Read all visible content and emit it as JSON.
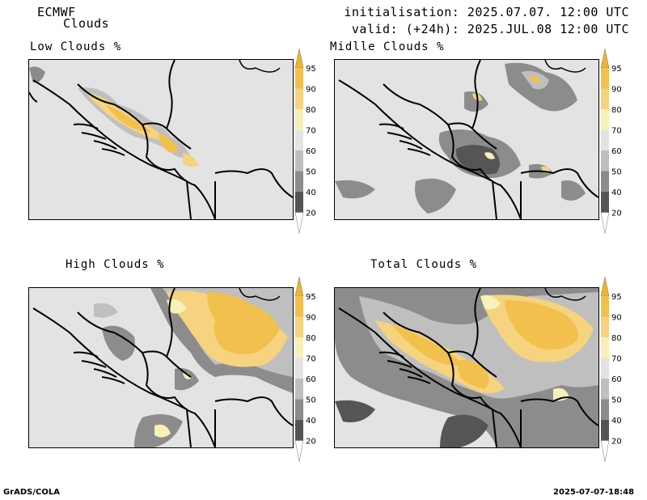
{
  "header": {
    "model": "ECMWF",
    "product": "Clouds",
    "initialisation": "initialisation: 2025.07.07. 12:00 UTC",
    "valid": "valid: (+24h): 2025.JUL.08 12:00 UTC"
  },
  "colorbar": {
    "levels": [
      "95",
      "90",
      "80",
      "70",
      "60",
      "50",
      "40",
      "20"
    ],
    "colors": {
      "above95": "#f0b32e",
      "c90_95": "#f2c04c",
      "c80_90": "#f5d37f",
      "c70_80": "#f7f0b8",
      "c60_70": "#e3e3e3",
      "c50_60": "#bfbfbf",
      "c40_50": "#8c8c8c",
      "c20_40": "#555555",
      "below20": "#ffffff"
    }
  },
  "panels": [
    {
      "id": "low",
      "title": "Low Clouds %"
    },
    {
      "id": "middle",
      "title": "Midlle Clouds %"
    },
    {
      "id": "high",
      "title": "High Clouds %"
    },
    {
      "id": "total",
      "title": "Total Clouds %"
    }
  ],
  "footer": {
    "left": "GrADS/COLA",
    "right": "2025-07-07-18:48"
  }
}
